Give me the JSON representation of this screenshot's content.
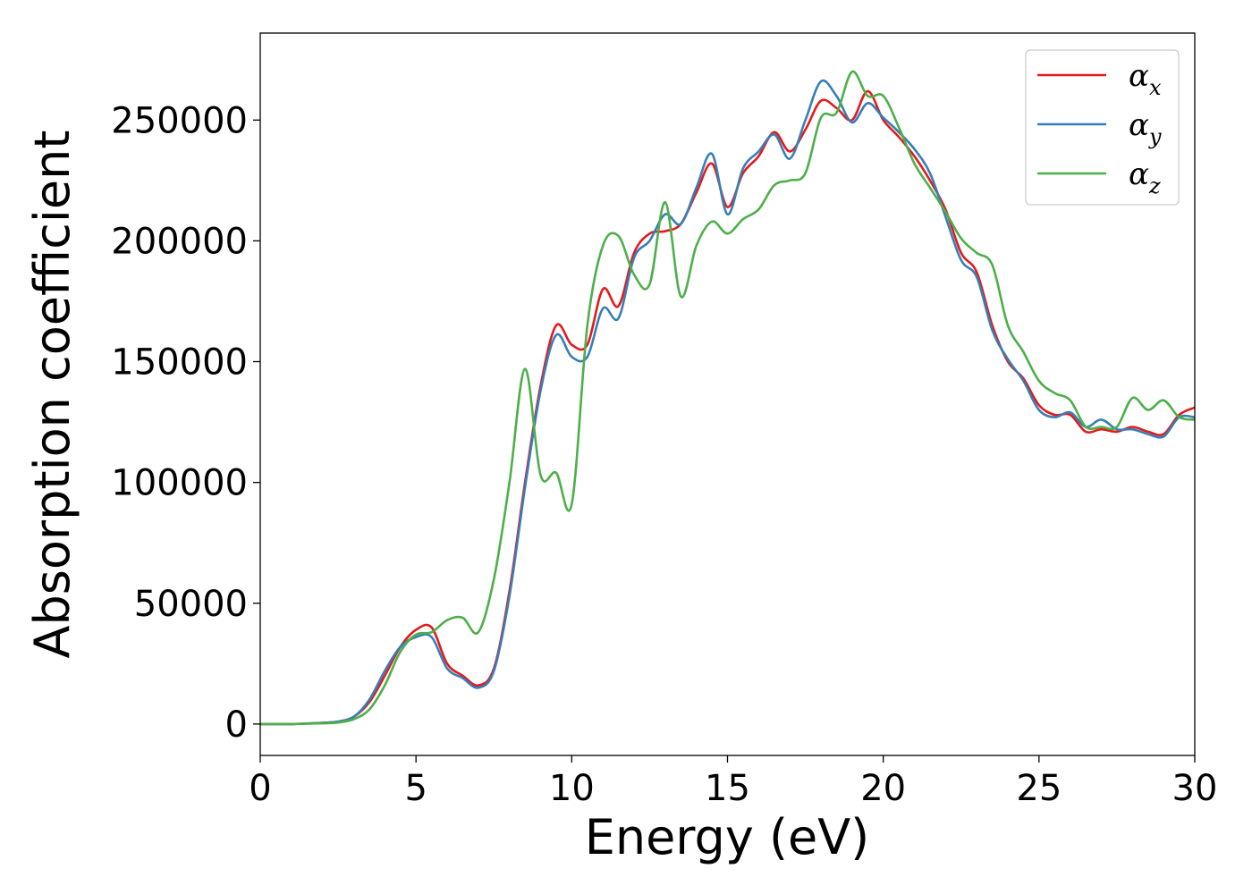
{
  "chart_data": {
    "type": "line",
    "xlabel": "Energy (eV)",
    "ylabel": "Absorption coefficient",
    "xlim": [
      0,
      30
    ],
    "ylim": [
      -13000,
      286000
    ],
    "xticks": [
      0,
      5,
      10,
      15,
      20,
      25,
      30
    ],
    "yticks": [
      0,
      50000,
      100000,
      150000,
      200000,
      250000
    ],
    "grid": false,
    "legend_position": "top-right",
    "series": [
      {
        "name": "α",
        "subscript": "x",
        "color": "#e41a1c",
        "x": [
          0,
          1,
          2,
          2.5,
          3,
          3.5,
          4,
          4.5,
          5,
          5.5,
          6,
          6.5,
          7,
          7.5,
          8,
          8.5,
          9,
          9.5,
          10,
          10.5,
          11,
          11.5,
          12,
          12.5,
          13,
          13.5,
          14,
          14.5,
          15,
          15.5,
          16,
          16.5,
          17,
          17.5,
          18,
          18.5,
          19,
          19.5,
          20,
          20.5,
          21,
          21.5,
          22,
          22.5,
          23,
          23.5,
          24,
          24.5,
          25,
          25.5,
          26,
          26.5,
          27,
          27.5,
          28,
          28.5,
          29,
          29.5,
          30
        ],
        "values": [
          0,
          0,
          500,
          1000,
          3000,
          9000,
          20000,
          32000,
          39000,
          40000,
          25000,
          20000,
          16000,
          23000,
          55000,
          100000,
          140000,
          165000,
          157000,
          157000,
          180000,
          173000,
          195000,
          203000,
          204000,
          207000,
          220000,
          232000,
          214000,
          228000,
          235000,
          245000,
          237000,
          246000,
          258000,
          255000,
          250000,
          262000,
          250000,
          243000,
          235000,
          225000,
          213000,
          195000,
          187000,
          165000,
          150000,
          143000,
          132000,
          128000,
          128000,
          121000,
          122000,
          121000,
          123000,
          121000,
          120000,
          128000,
          131000
        ]
      },
      {
        "name": "α",
        "subscript": "y",
        "color": "#377eb8",
        "x": [
          0,
          1,
          2,
          2.5,
          3,
          3.5,
          4,
          4.5,
          5,
          5.5,
          6,
          6.5,
          7,
          7.5,
          8,
          8.5,
          9,
          9.5,
          10,
          10.5,
          11,
          11.5,
          12,
          12.5,
          13,
          13.5,
          14,
          14.5,
          15,
          15.5,
          16,
          16.5,
          17,
          17.5,
          18,
          18.5,
          19,
          19.5,
          20,
          20.5,
          21,
          21.5,
          22,
          22.5,
          23,
          23.5,
          24,
          24.5,
          25,
          25.5,
          26,
          26.5,
          27,
          27.5,
          28,
          28.5,
          29,
          29.5,
          30
        ],
        "values": [
          0,
          0,
          500,
          1000,
          3000,
          10000,
          22000,
          32000,
          36000,
          36000,
          23000,
          19000,
          15000,
          22000,
          53000,
          98000,
          138000,
          161000,
          152000,
          152000,
          172000,
          168000,
          193000,
          200000,
          211000,
          207000,
          222000,
          236000,
          211000,
          230000,
          237000,
          244000,
          234000,
          250000,
          266000,
          260000,
          249000,
          257000,
          251000,
          245000,
          238000,
          228000,
          210000,
          192000,
          185000,
          163000,
          151000,
          142000,
          130000,
          127000,
          129000,
          123000,
          126000,
          122000,
          122000,
          120000,
          119000,
          127000,
          127000
        ]
      },
      {
        "name": "α",
        "subscript": "z",
        "color": "#4daf4a",
        "x": [
          0,
          1,
          2,
          2.5,
          3,
          3.5,
          4,
          4.5,
          5,
          5.5,
          6,
          6.5,
          7,
          7.5,
          8,
          8.5,
          9,
          9.5,
          10,
          10.5,
          11,
          11.5,
          12,
          12.5,
          13,
          13.5,
          14,
          14.5,
          15,
          15.5,
          16,
          16.5,
          17,
          17.5,
          18,
          18.5,
          19,
          19.5,
          20,
          20.5,
          21,
          21.5,
          22,
          22.5,
          23,
          23.5,
          24,
          24.5,
          25,
          25.5,
          26,
          26.5,
          27,
          27.5,
          28,
          28.5,
          29,
          29.5,
          30
        ],
        "values": [
          0,
          0,
          300,
          600,
          2000,
          6000,
          16000,
          30000,
          37000,
          38000,
          43000,
          44000,
          38000,
          60000,
          100000,
          147000,
          103000,
          104000,
          91000,
          165000,
          198000,
          202000,
          186000,
          182000,
          216000,
          177000,
          198000,
          208000,
          203000,
          209000,
          213000,
          223000,
          225000,
          228000,
          251000,
          253000,
          270000,
          260000,
          260000,
          247000,
          232000,
          222000,
          212000,
          201000,
          195000,
          190000,
          165000,
          154000,
          142000,
          137000,
          134000,
          123000,
          123000,
          123000,
          135000,
          130000,
          134000,
          127000,
          126000
        ]
      }
    ]
  }
}
